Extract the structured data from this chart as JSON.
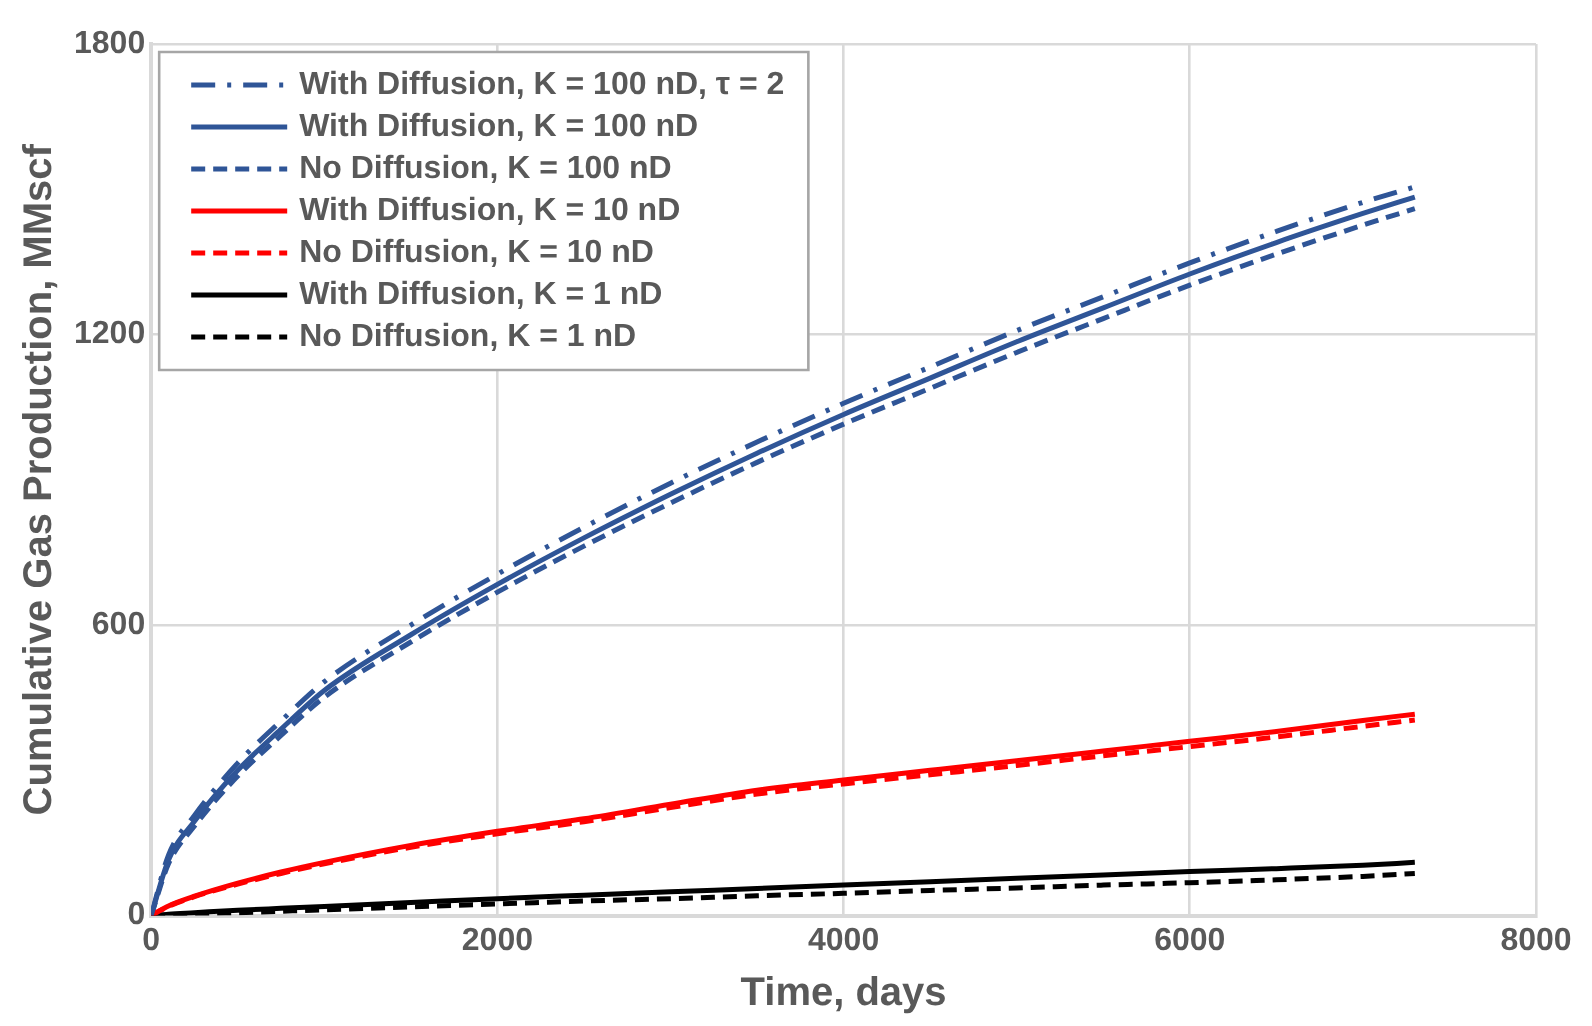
{
  "chart_data": {
    "type": "line",
    "xlabel": "Time, days",
    "ylabel": "Cumulative Gas Production, MMscf",
    "x": [
      0,
      100,
      250,
      500,
      750,
      1000,
      1500,
      2000,
      2500,
      3000,
      3500,
      4000,
      4500,
      5000,
      5500,
      6000,
      6500,
      7000,
      7300
    ],
    "xlim": [
      0,
      8000
    ],
    "xticks": [
      0,
      2000,
      4000,
      6000,
      8000
    ],
    "ylim": [
      0,
      1800
    ],
    "yticks": [
      0,
      600,
      1200,
      1800
    ],
    "grid": true,
    "legend": "top left",
    "marker": "none",
    "series": [
      {
        "name": "With Diffusion, K = 100 nD, τ = 2",
        "color": "#2f5597",
        "line_style": "dashdot",
        "values": [
          0,
          125,
          207,
          315,
          402,
          483,
          600,
          705,
          802,
          893,
          978,
          1058,
          1133,
          1208,
          1278,
          1348,
          1413,
          1473,
          1505
        ]
      },
      {
        "name": "With Diffusion, K = 100 nD",
        "color": "#2f5597",
        "line_style": "solid",
        "values": [
          0,
          115,
          195,
          300,
          385,
          465,
          580,
          684,
          780,
          870,
          955,
          1035,
          1110,
          1185,
          1255,
          1325,
          1390,
          1450,
          1484
        ]
      },
      {
        "name": "No Diffusion, K = 100 nD",
        "color": "#2f5597",
        "line_style": "dashed",
        "values": [
          0,
          107,
          185,
          288,
          372,
          451,
          565,
          668,
          763,
          852,
          936,
          1015,
          1089,
          1163,
          1233,
          1302,
          1366,
          1426,
          1460
        ]
      },
      {
        "name": "With Diffusion, K = 10 nD",
        "color": "#ff0000",
        "line_style": "solid",
        "values": [
          0,
          20,
          40,
          67,
          90,
          110,
          145,
          174,
          200,
          230,
          259,
          280,
          300,
          320,
          340,
          360,
          380,
          403,
          416
        ]
      },
      {
        "name": "No Diffusion, K = 10 nD",
        "color": "#ff0000",
        "line_style": "dashed",
        "values": [
          0,
          19,
          39,
          65,
          87,
          107,
          141,
          169,
          194,
          223,
          251,
          272,
          291,
          310,
          330,
          349,
          369,
          391,
          404
        ]
      },
      {
        "name": "With Diffusion, K = 1 nD",
        "color": "#000000",
        "line_style": "solid",
        "values": [
          0,
          3,
          6,
          11,
          15,
          19,
          27,
          35,
          42,
          49,
          56,
          63,
          70,
          77,
          84,
          91,
          97,
          104,
          110
        ]
      },
      {
        "name": "No Diffusion, K = 1 nD",
        "color": "#000000",
        "line_style": "dashed",
        "values": [
          0,
          1,
          3,
          6,
          9,
          12,
          18,
          24,
          30,
          35,
          41,
          46,
          52,
          57,
          63,
          68,
          74,
          81,
          87
        ]
      }
    ]
  }
}
